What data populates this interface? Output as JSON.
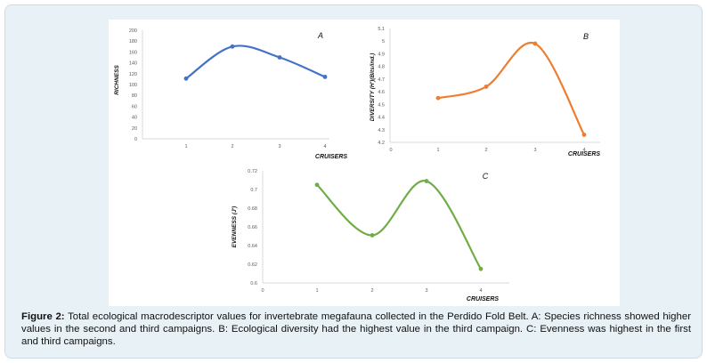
{
  "figure": {
    "caption_label": "Figure 2:",
    "caption_text": "Total ecological macrodescriptor values for invertebrate megafauna collected in the Perdido Fold Belt. A: Species richness showed higher values in the second and third campaigns. B: Ecological diversity had the highest value in the third campaign. C: Evenness was highest in the first and third campaigns."
  },
  "chart_data": [
    {
      "id": "A",
      "type": "line",
      "panel_letter": "A",
      "title": "",
      "xlabel": "CRUISERS",
      "ylabel": "RICHNESS",
      "x": [
        1,
        2,
        3,
        4
      ],
      "xticks": [
        "1",
        "2",
        "3",
        "4"
      ],
      "yticks": [
        "0",
        "20",
        "40",
        "60",
        "80",
        "100",
        "120",
        "140",
        "160",
        "180",
        "200"
      ],
      "ylim": [
        0,
        200
      ],
      "series": [
        {
          "name": "Richness",
          "values": [
            111,
            170,
            150,
            114
          ],
          "color": "#4472c4"
        }
      ],
      "grid": false
    },
    {
      "id": "B",
      "type": "line",
      "panel_letter": "B",
      "title": "",
      "xlabel": "CRUISERS",
      "ylabel": "DIVERSITY (H')(Bits/ind.)",
      "x": [
        1,
        2,
        3,
        4
      ],
      "xticks": [
        "0",
        "1",
        "2",
        "3",
        "4"
      ],
      "yticks": [
        "4.2",
        "4.3",
        "4.4",
        "4.5",
        "4.6",
        "4.7",
        "4.8",
        "4.9",
        "5",
        "5.1"
      ],
      "ylim": [
        4.2,
        5.1
      ],
      "series": [
        {
          "name": "Diversity",
          "values": [
            4.55,
            4.64,
            4.98,
            4.26
          ],
          "color": "#ed7d31"
        }
      ],
      "grid": false
    },
    {
      "id": "C",
      "type": "line",
      "panel_letter": "C",
      "title": "",
      "xlabel": "CRUISERS",
      "ylabel": "EVENNESS (J')",
      "x": [
        1,
        2,
        3,
        4
      ],
      "xticks": [
        "0",
        "1",
        "2",
        "3",
        "4"
      ],
      "yticks": [
        "0.6",
        "0.62",
        "0.64",
        "0.66",
        "0.68",
        "0.7",
        "0.72"
      ],
      "ylim": [
        0.6,
        0.72
      ],
      "series": [
        {
          "name": "Evenness",
          "values": [
            0.705,
            0.651,
            0.709,
            0.615
          ],
          "color": "#70ad47"
        }
      ],
      "grid": false
    }
  ]
}
